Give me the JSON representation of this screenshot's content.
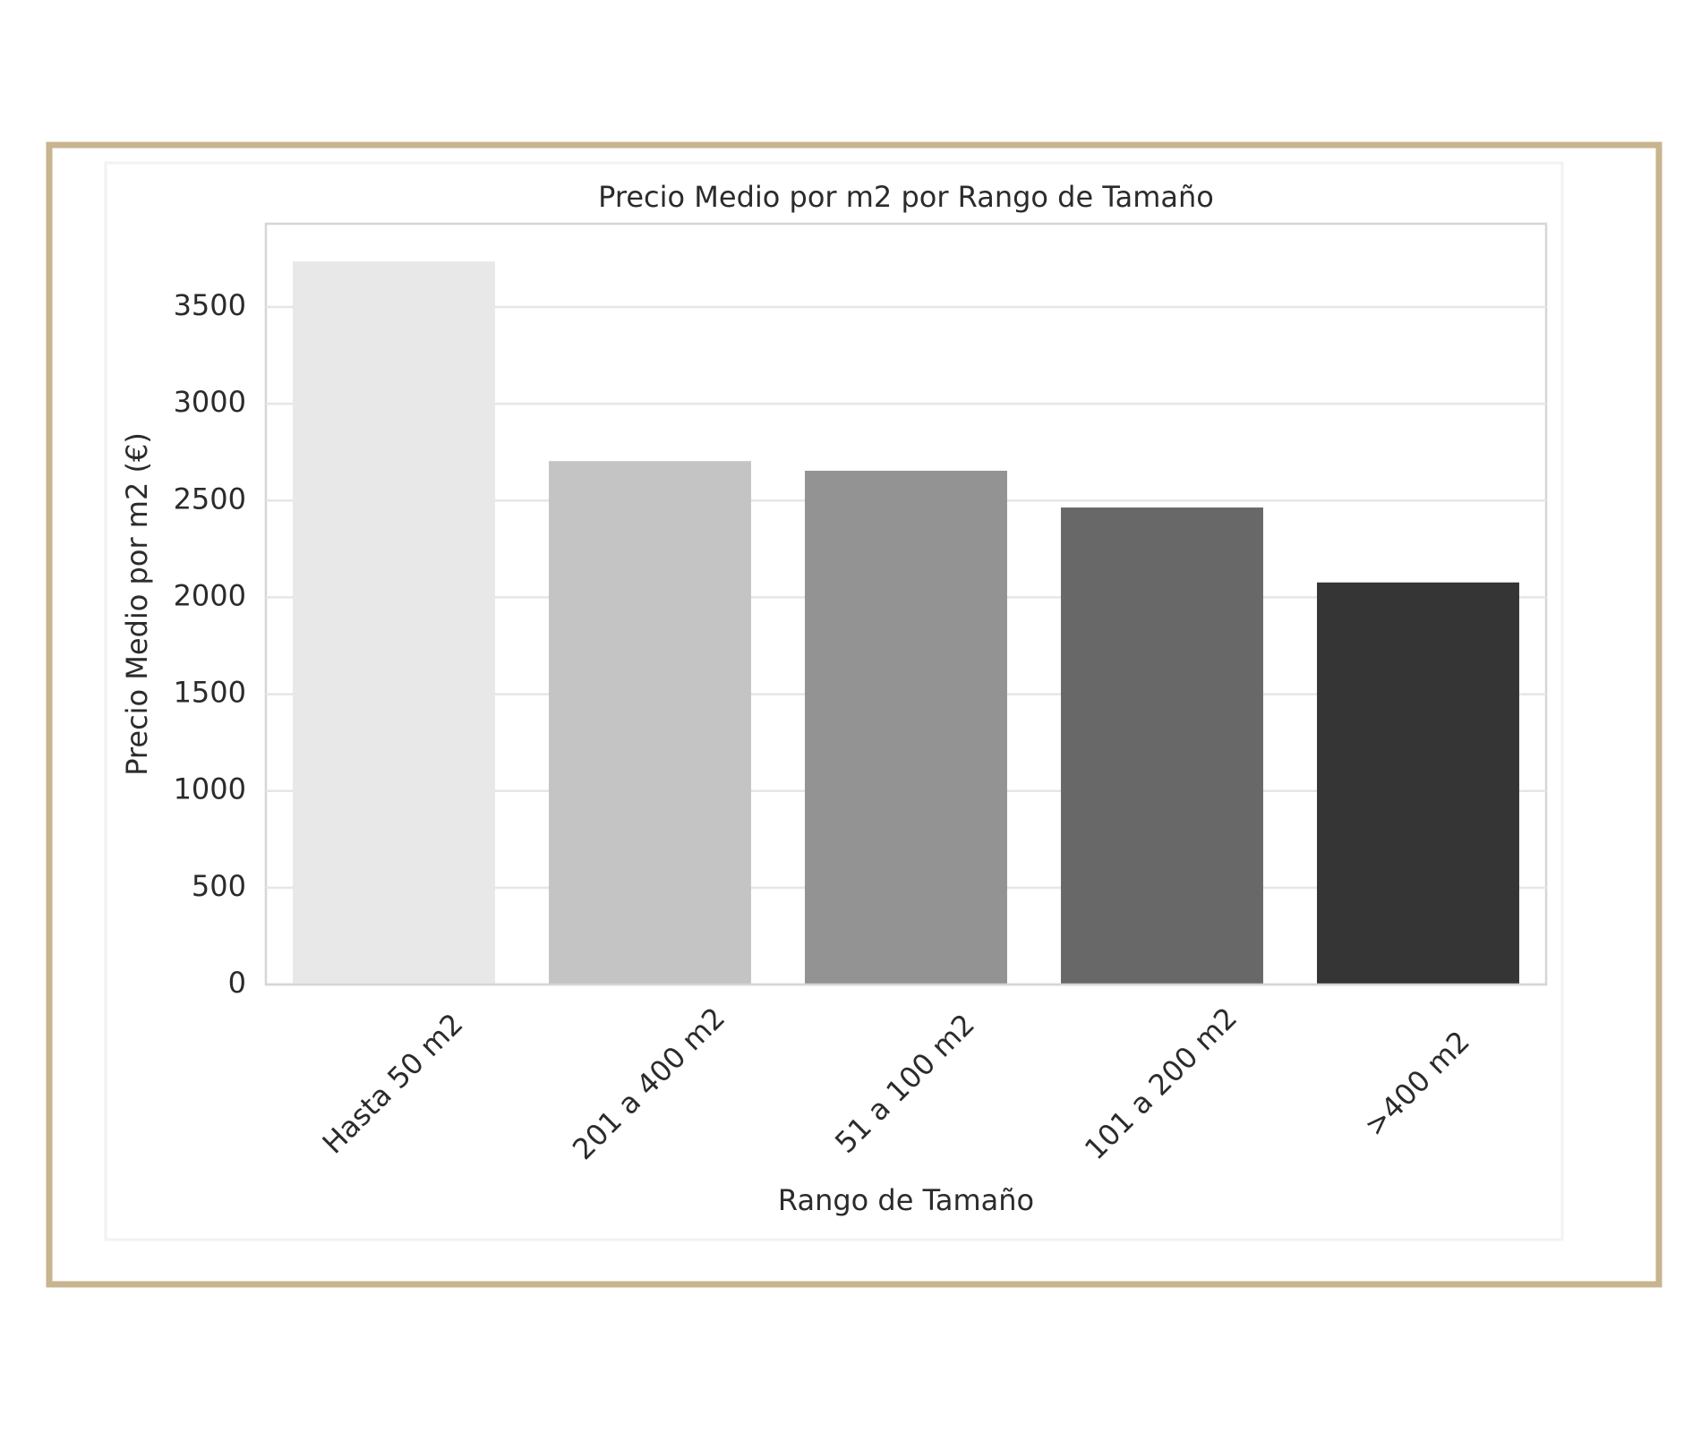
{
  "chart_data": {
    "type": "bar",
    "title": "Precio Medio por m2 por Rango de Tamaño",
    "x_label": "Rango de Tamaño",
    "y_label": "Precio Medio por m2 (€)",
    "categories": [
      "Hasta 50 m2",
      "201 a 400 m2",
      "51 a 100 m2",
      "101 a 200 m2",
      ">400 m2"
    ],
    "values": [
      3735,
      2704,
      2654,
      2464,
      2077
    ],
    "colors": [
      "#e8e8e8",
      "#c4c4c4",
      "#939393",
      "#686868",
      "#353535"
    ],
    "ylim": [
      0,
      3930
    ],
    "yticks": [
      0,
      500,
      1000,
      1500,
      2000,
      2500,
      3000,
      3500
    ],
    "grid": true
  }
}
